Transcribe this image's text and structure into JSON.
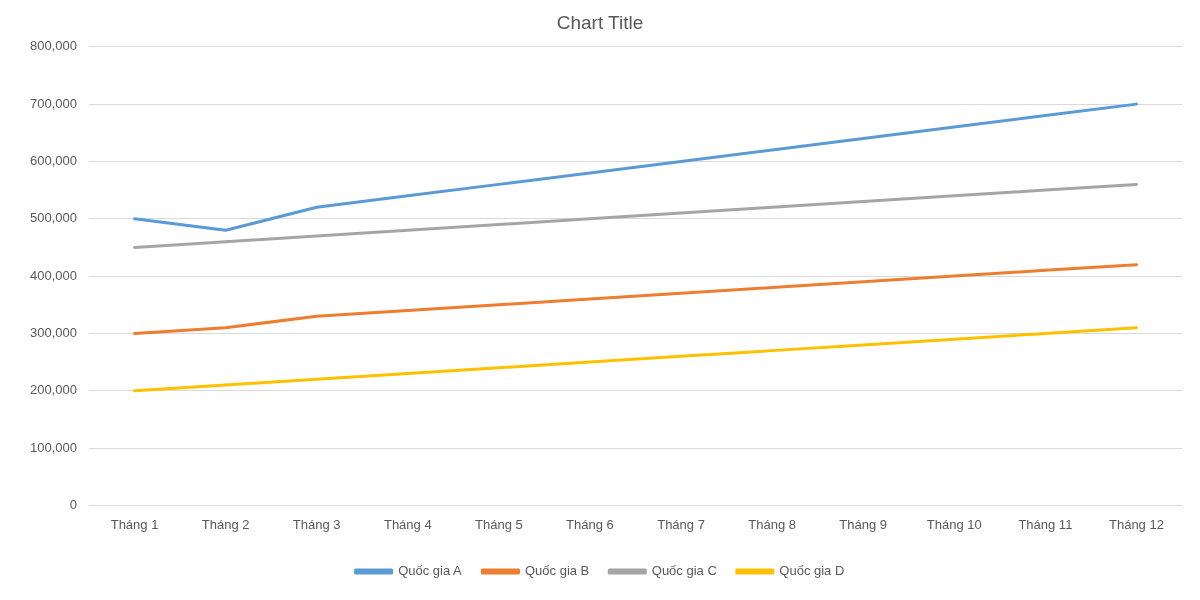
{
  "chart_data": {
    "type": "line",
    "title": "Chart Title",
    "categories": [
      "Tháng 1",
      "Tháng 2",
      "Tháng 3",
      "Tháng 4",
      "Tháng 5",
      "Tháng 6",
      "Tháng 7",
      "Tháng 8",
      "Tháng 9",
      "Tháng 10",
      "Tháng 11",
      "Tháng 12"
    ],
    "series": [
      {
        "name": "Quốc gia A",
        "color": "#5b9bd5",
        "values": [
          500000,
          480000,
          520000,
          540000,
          560000,
          580000,
          600000,
          620000,
          640000,
          660000,
          680000,
          700000
        ]
      },
      {
        "name": "Quốc gia B",
        "color": "#ed7d31",
        "values": [
          300000,
          310000,
          330000,
          340000,
          350000,
          360000,
          370000,
          380000,
          390000,
          400000,
          410000,
          420000
        ]
      },
      {
        "name": "Quốc gia C",
        "color": "#a5a5a5",
        "values": [
          450000,
          460000,
          470000,
          480000,
          490000,
          500000,
          510000,
          520000,
          530000,
          540000,
          550000,
          560000
        ]
      },
      {
        "name": "Quốc gia D",
        "color": "#ffc000",
        "values": [
          200000,
          210000,
          220000,
          230000,
          240000,
          250000,
          260000,
          270000,
          280000,
          290000,
          300000,
          310000
        ]
      }
    ],
    "ylim": [
      0,
      800000
    ],
    "yticks": [
      0,
      {
        "value": 100000,
        "label": "100,000"
      },
      {
        "value": 200000,
        "label": "200,000"
      },
      {
        "value": 300000,
        "label": "300,000"
      },
      {
        "value": 400000,
        "label": "400,000"
      },
      {
        "value": 500000,
        "label": "500,000"
      },
      {
        "value": 600000,
        "label": "600,000"
      },
      {
        "value": 700000,
        "label": "700,000"
      },
      {
        "value": 800000,
        "label": "800,000"
      }
    ],
    "grid": "y",
    "legend": "bottom"
  }
}
